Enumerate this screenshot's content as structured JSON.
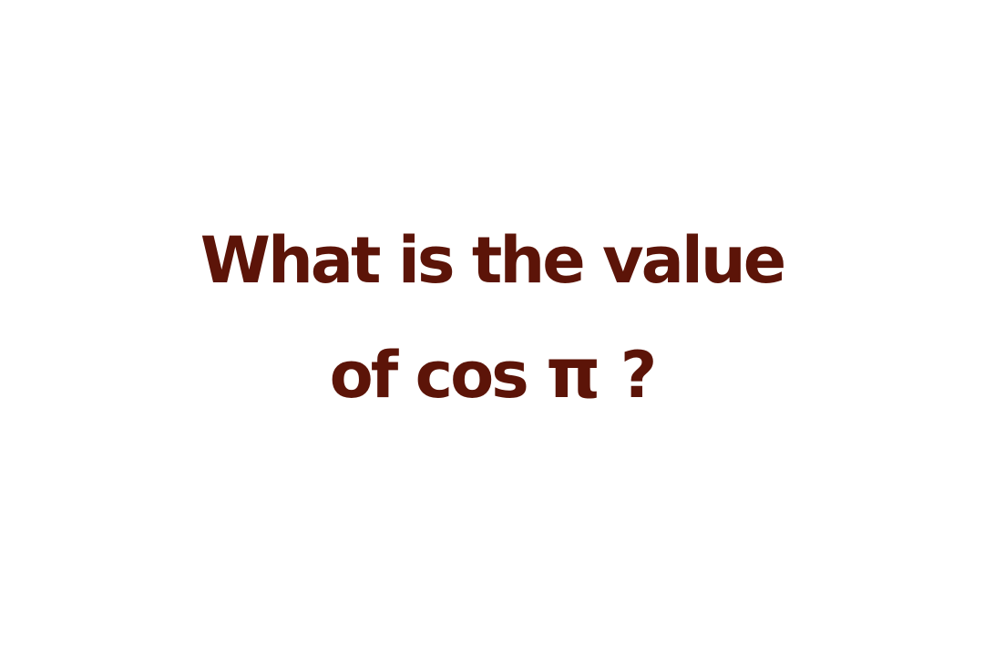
{
  "question": {
    "line1": "What is the value",
    "line2_prefix": "of cos",
    "symbol": "π",
    "line2_suffix": "?"
  },
  "colors": {
    "text": "#5c1408",
    "background": "#ffffff"
  }
}
